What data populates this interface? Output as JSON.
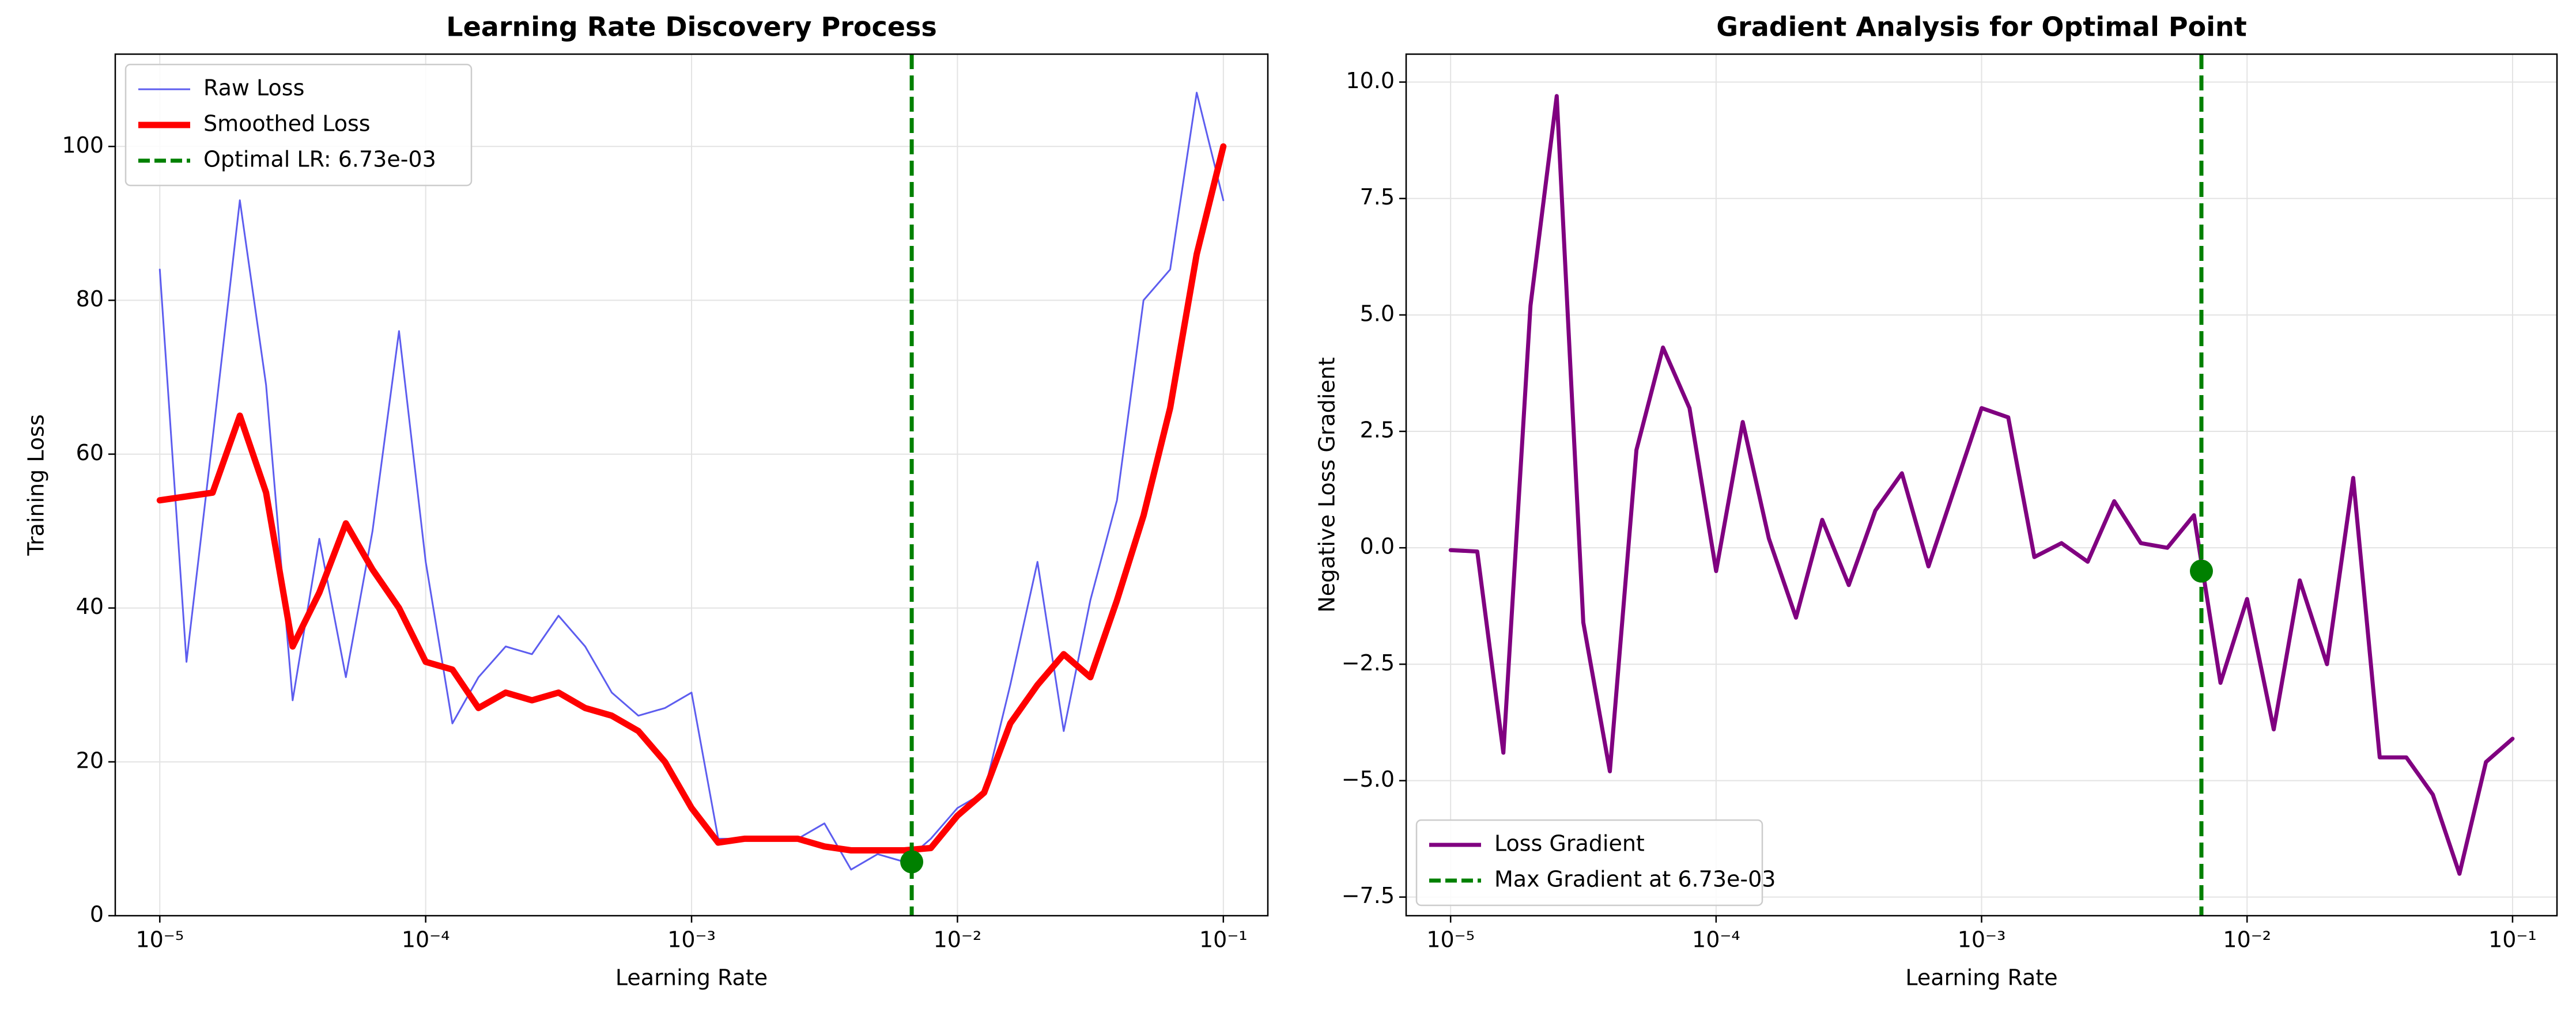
{
  "chart_data": [
    {
      "type": "line",
      "title": "Learning Rate Discovery Process",
      "xlabel": "Learning Rate",
      "ylabel": "Training Loss",
      "xscale": "log",
      "x": [
        1e-05,
        1.26e-05,
        1.58e-05,
        2e-05,
        2.51e-05,
        3.16e-05,
        3.98e-05,
        5.01e-05,
        6.31e-05,
        7.94e-05,
        0.0001,
        0.000126,
        0.000158,
        0.0002,
        0.000251,
        0.000316,
        0.000398,
        0.000501,
        0.000631,
        0.000794,
        0.001,
        0.00126,
        0.00158,
        0.002,
        0.00251,
        0.00316,
        0.00398,
        0.00501,
        0.00631,
        0.00794,
        0.01,
        0.0126,
        0.0158,
        0.02,
        0.0251,
        0.0316,
        0.0398,
        0.0501,
        0.0631,
        0.0794,
        0.1
      ],
      "xlim": [
        6.8e-06,
        0.147
      ],
      "xticks": [
        {
          "value": 1e-05,
          "label": "10⁻⁵"
        },
        {
          "value": 0.0001,
          "label": "10⁻⁴"
        },
        {
          "value": 0.001,
          "label": "10⁻³"
        },
        {
          "value": 0.01,
          "label": "10⁻²"
        },
        {
          "value": 0.1,
          "label": "10⁻¹"
        }
      ],
      "ylim": [
        0,
        112
      ],
      "yticks": [
        0,
        20,
        40,
        60,
        80,
        100
      ],
      "grid": true,
      "legend": "upper left",
      "series": [
        {
          "name": "Raw Loss",
          "color": "#5d5def",
          "linewidth": 3,
          "values": [
            84,
            33,
            62,
            93,
            69,
            28,
            49,
            31,
            50,
            76,
            46,
            25,
            31,
            35,
            34,
            39,
            35,
            29,
            26,
            27,
            29,
            10,
            10,
            10,
            10,
            12,
            6,
            8,
            7,
            10,
            14,
            16,
            30,
            46,
            24,
            41,
            54,
            80,
            84,
            107,
            93
          ]
        },
        {
          "name": "Smoothed Loss",
          "color": "#ff0000",
          "linewidth": 11,
          "values": [
            54,
            54.5,
            55,
            65,
            55,
            35,
            42,
            51,
            45,
            40,
            33,
            32,
            27,
            29,
            28,
            29,
            27,
            26,
            24,
            20,
            14,
            9.5,
            10,
            10,
            10,
            9,
            8.5,
            8.5,
            8.5,
            8.8,
            13,
            16,
            25,
            30,
            34,
            31,
            41,
            52,
            66,
            86,
            100
          ]
        }
      ],
      "vline": {
        "name": "Optimal LR: 6.73e-03",
        "x": 0.00673,
        "color": "#008000"
      },
      "point": {
        "x": 0.00673,
        "y": 7,
        "color": "#008000"
      }
    },
    {
      "type": "line",
      "title": "Gradient Analysis for Optimal Point",
      "xlabel": "Learning Rate",
      "ylabel": "Negative Loss Gradient",
      "xscale": "log",
      "x": [
        1e-05,
        1.26e-05,
        1.58e-05,
        2e-05,
        2.51e-05,
        3.16e-05,
        3.98e-05,
        5.01e-05,
        6.31e-05,
        7.94e-05,
        0.0001,
        0.000126,
        0.000158,
        0.0002,
        0.000251,
        0.000316,
        0.000398,
        0.000501,
        0.000631,
        0.000794,
        0.001,
        0.00126,
        0.00158,
        0.002,
        0.00251,
        0.00316,
        0.00398,
        0.00501,
        0.00631,
        0.00794,
        0.01,
        0.0126,
        0.0158,
        0.02,
        0.0251,
        0.0316,
        0.0398,
        0.0501,
        0.0631,
        0.0794,
        0.1
      ],
      "xlim": [
        6.8e-06,
        0.147
      ],
      "xticks": [
        {
          "value": 1e-05,
          "label": "10⁻⁵"
        },
        {
          "value": 0.0001,
          "label": "10⁻⁴"
        },
        {
          "value": 0.001,
          "label": "10⁻³"
        },
        {
          "value": 0.01,
          "label": "10⁻²"
        },
        {
          "value": 0.1,
          "label": "10⁻¹"
        }
      ],
      "ylim": [
        -7.9,
        10.6
      ],
      "yticks": [
        {
          "value": -7.5,
          "label": "−7.5"
        },
        {
          "value": -5,
          "label": "−5.0"
        },
        {
          "value": -2.5,
          "label": "−2.5"
        },
        {
          "value": 0,
          "label": "0.0"
        },
        {
          "value": 2.5,
          "label": "2.5"
        },
        {
          "value": 5,
          "label": "5.0"
        },
        {
          "value": 7.5,
          "label": "7.5"
        },
        {
          "value": 10,
          "label": "10.0"
        }
      ],
      "grid": true,
      "legend": "lower left",
      "series": [
        {
          "name": "Loss Gradient",
          "color": "#800080",
          "linewidth": 7,
          "values": [
            -0.05,
            -0.08,
            -4.4,
            5.2,
            9.7,
            -1.6,
            -4.8,
            2.1,
            4.3,
            3.0,
            -0.5,
            2.7,
            0.2,
            -1.5,
            0.6,
            -0.8,
            0.8,
            1.6,
            -0.4,
            1.3,
            3.0,
            2.8,
            -0.2,
            0.1,
            -0.3,
            1.0,
            0.1,
            0.0,
            0.7,
            -2.9,
            -1.1,
            -3.9,
            -0.7,
            -2.5,
            1.5,
            -4.5,
            -4.5,
            -5.3,
            -7.0,
            -4.6,
            -4.1
          ]
        }
      ],
      "vline": {
        "name": "Max Gradient at 6.73e-03",
        "x": 0.00673,
        "color": "#008000"
      },
      "point": {
        "x": 0.00673,
        "y": -0.5,
        "color": "#008000"
      }
    }
  ]
}
